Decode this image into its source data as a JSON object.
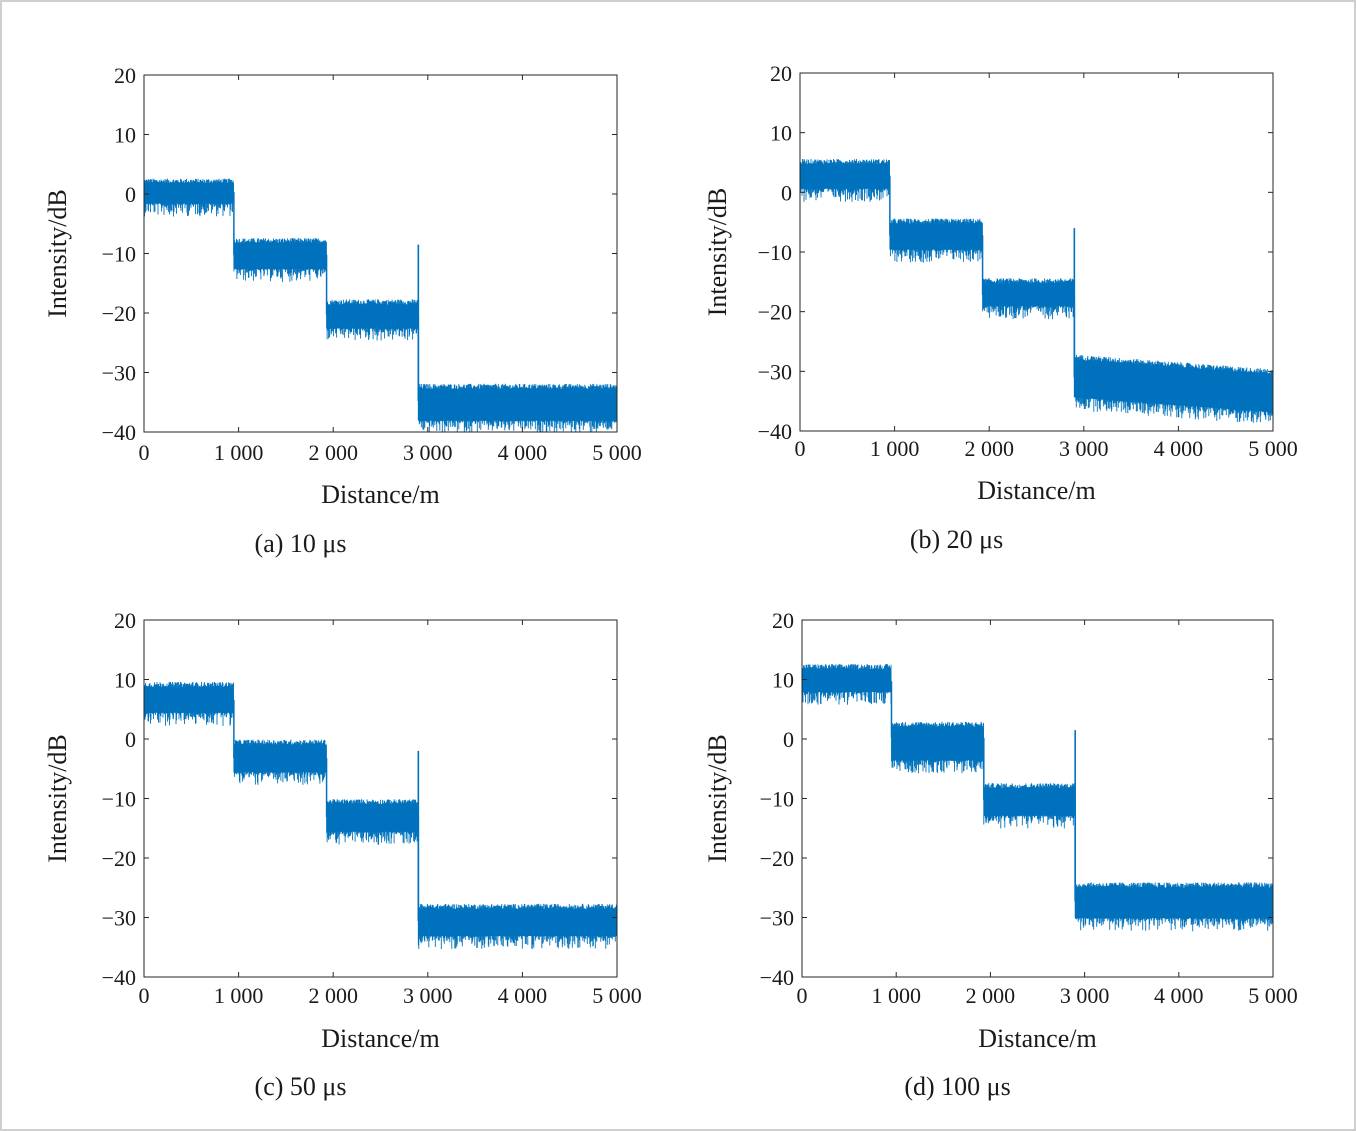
{
  "figure": {
    "panel_count": 4
  },
  "chart_data": [
    {
      "type": "line",
      "id": "a",
      "caption": "(a) 10 μs",
      "xlabel": "Distance/m",
      "ylabel": "Intensity/dB",
      "xlim": [
        0,
        5000
      ],
      "ylim": [
        -40,
        20
      ],
      "xticks": [
        0,
        1000,
        2000,
        3000,
        4000,
        5000
      ],
      "xtick_labels": [
        "0",
        "1 000",
        "2 000",
        "3 000",
        "4 000",
        "5 000"
      ],
      "yticks": [
        20,
        10,
        0,
        -10,
        -20,
        -30,
        -40
      ],
      "ytick_labels": [
        "20",
        "10",
        "0",
        "−10",
        "−20",
        "−30",
        "−40"
      ],
      "grid": false,
      "color": "#0072bd",
      "segments": [
        {
          "x_start": 0,
          "x_end": 950,
          "mean": 0.3,
          "noise_low": -3,
          "noise_high": 2.5
        },
        {
          "x_start": 950,
          "x_end": 1930,
          "mean": -10.2,
          "noise_low": -14,
          "noise_high": -7.5
        },
        {
          "x_start": 1930,
          "x_end": 2900,
          "mean": -20.3,
          "noise_low": -24,
          "noise_high": -17.8
        },
        {
          "x_start": 2900,
          "x_end": 5000,
          "mean": -34.8,
          "noise_low": -39.5,
          "noise_high": -32
        }
      ],
      "spike": {
        "x": 2900,
        "peak": -8.5
      }
    },
    {
      "type": "line",
      "id": "b",
      "caption": "(b) 20 μs",
      "xlabel": "Distance/m",
      "ylabel": "Intensity/dB",
      "xlim": [
        0,
        5000
      ],
      "ylim": [
        -40,
        20
      ],
      "xticks": [
        0,
        1000,
        2000,
        3000,
        4000,
        5000
      ],
      "xtick_labels": [
        "0",
        "1 000",
        "2 000",
        "3 000",
        "4 000",
        "5 000"
      ],
      "yticks": [
        20,
        10,
        0,
        -10,
        -20,
        -30,
        -40
      ],
      "ytick_labels": [
        "20",
        "10",
        "0",
        "−10",
        "−20",
        "−30",
        "−40"
      ],
      "grid": false,
      "color": "#0072bd",
      "segments": [
        {
          "x_start": 0,
          "x_end": 950,
          "mean": 2.8,
          "noise_low": -0.8,
          "noise_high": 5.5
        },
        {
          "x_start": 950,
          "x_end": 1930,
          "mean": -7.2,
          "noise_low": -11,
          "noise_high": -4.5
        },
        {
          "x_start": 1930,
          "x_end": 2900,
          "mean": -17.2,
          "noise_low": -20.5,
          "noise_high": -14.5
        },
        {
          "x_start": 2900,
          "x_end": 5000,
          "mean_start": -31,
          "mean_end": -33.5,
          "noise_low": -37,
          "noise_high": -28.5
        }
      ],
      "spike": {
        "x": 2900,
        "peak": -6
      }
    },
    {
      "type": "line",
      "id": "c",
      "caption": "(c) 50 μs",
      "xlabel": "Distance/m",
      "ylabel": "Intensity/dB",
      "xlim": [
        0,
        5000
      ],
      "ylim": [
        -40,
        20
      ],
      "xticks": [
        0,
        1000,
        2000,
        3000,
        4000,
        5000
      ],
      "xtick_labels": [
        "0",
        "1 000",
        "2 000",
        "3 000",
        "4 000",
        "5 000"
      ],
      "yticks": [
        20,
        10,
        0,
        -10,
        -20,
        -30,
        -40
      ],
      "ytick_labels": [
        "20",
        "10",
        "0",
        "−10",
        "−20",
        "−30",
        "−40"
      ],
      "grid": false,
      "color": "#0072bd",
      "segments": [
        {
          "x_start": 0,
          "x_end": 950,
          "mean": 6.6,
          "noise_low": 3,
          "noise_high": 9.5
        },
        {
          "x_start": 950,
          "x_end": 1930,
          "mean": -3.2,
          "noise_low": -7,
          "noise_high": -0.2
        },
        {
          "x_start": 1930,
          "x_end": 2900,
          "mean": -13.1,
          "noise_low": -17,
          "noise_high": -10.2
        },
        {
          "x_start": 2900,
          "x_end": 5000,
          "mean": -30.6,
          "noise_low": -34.5,
          "noise_high": -27.8
        }
      ],
      "spike": {
        "x": 2900,
        "peak": -2
      }
    },
    {
      "type": "line",
      "id": "d",
      "caption": "(d) 100 μs",
      "xlabel": "Distance/m",
      "ylabel": "Intensity/dB",
      "xlim": [
        0,
        5000
      ],
      "ylim": [
        -40,
        20
      ],
      "xticks": [
        0,
        1000,
        2000,
        3000,
        4000,
        5000
      ],
      "xtick_labels": [
        "0",
        "1 000",
        "2 000",
        "3 000",
        "4 000",
        "5 000"
      ],
      "yticks": [
        20,
        10,
        0,
        -10,
        -20,
        -30,
        -40
      ],
      "ytick_labels": [
        "20",
        "10",
        "0",
        "−10",
        "−20",
        "−30",
        "−40"
      ],
      "grid": false,
      "color": "#0072bd",
      "segments": [
        {
          "x_start": 0,
          "x_end": 950,
          "mean": 9.7,
          "noise_low": 6.5,
          "noise_high": 12.5
        },
        {
          "x_start": 950,
          "x_end": 1930,
          "mean": 0.2,
          "noise_low": -5,
          "noise_high": 2.8
        },
        {
          "x_start": 1930,
          "x_end": 2900,
          "mean": -10.2,
          "noise_low": -14.3,
          "noise_high": -7.5
        },
        {
          "x_start": 2900,
          "x_end": 5000,
          "mean": -27.3,
          "noise_low": -31.5,
          "noise_high": -24.2
        }
      ],
      "spike": {
        "x": 2900,
        "peak": 1.5
      }
    }
  ]
}
